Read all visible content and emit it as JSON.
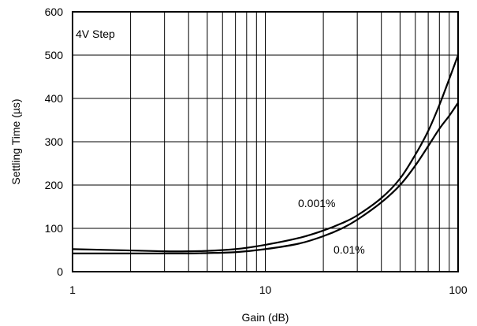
{
  "chart_data": {
    "type": "line",
    "title": "",
    "annotation": "4V Step",
    "xlabel": "Gain (dB)",
    "ylabel": "Settling Time (µs)",
    "x_scale": "log",
    "xlim": [
      1,
      100
    ],
    "ylim": [
      0,
      600
    ],
    "x_ticks": [
      1,
      10,
      100
    ],
    "x_tick_labels": [
      "1",
      "10",
      "100"
    ],
    "y_ticks": [
      0,
      100,
      200,
      300,
      400,
      500,
      600
    ],
    "y_tick_labels": [
      "0",
      "100",
      "200",
      "300",
      "400",
      "500",
      "600"
    ],
    "grid": true,
    "series": [
      {
        "name": "0.001%",
        "x": [
          1,
          2,
          3,
          4,
          5,
          7,
          10,
          15,
          20,
          25,
          30,
          40,
          50,
          60,
          70,
          80,
          90,
          100
        ],
        "y": [
          52,
          49,
          47,
          47,
          48,
          52,
          62,
          78,
          95,
          112,
          130,
          170,
          215,
          270,
          325,
          385,
          445,
          500
        ]
      },
      {
        "name": "0.01%",
        "x": [
          1,
          2,
          3,
          4,
          5,
          7,
          10,
          15,
          20,
          25,
          30,
          40,
          50,
          60,
          70,
          80,
          90,
          100
        ],
        "y": [
          42,
          42,
          42,
          42,
          43,
          45,
          52,
          65,
          82,
          100,
          120,
          160,
          200,
          245,
          290,
          330,
          360,
          390
        ]
      }
    ],
    "series_labels": [
      "0.001%",
      "0.01%"
    ]
  }
}
